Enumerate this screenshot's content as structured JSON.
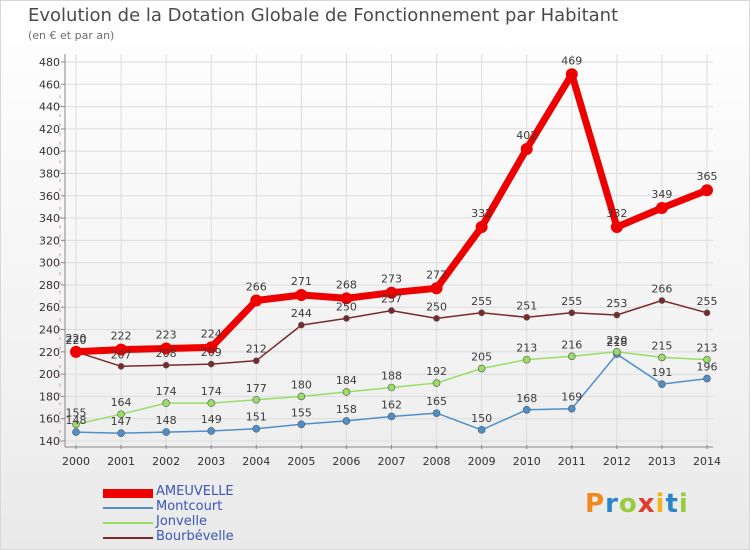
{
  "title": "Evolution de la Dotation Globale de Fonctionnement par Habitant",
  "subtitle": "(en € et par an)",
  "logo_text": "Proxiti",
  "chart_data": {
    "type": "line",
    "x": [
      "2000",
      "2001",
      "2002",
      "2003",
      "2004",
      "2005",
      "2006",
      "2007",
      "2008",
      "2009",
      "2010",
      "2011",
      "2012",
      "2013",
      "2014"
    ],
    "ylim": [
      140,
      480
    ],
    "yticks": [
      "140",
      "160",
      "180",
      "200",
      "220",
      "240",
      "260",
      "280",
      "300",
      "320",
      "340",
      "360",
      "380",
      "400",
      "420",
      "440",
      "460",
      "480"
    ],
    "grid": true,
    "legend": "bottom-left",
    "series": [
      {
        "name": "Montcourt",
        "color": "#4f8fc9",
        "values": [
          148,
          147,
          148,
          149,
          151,
          155,
          158,
          162,
          165,
          150,
          168,
          169,
          218,
          191,
          196
        ]
      },
      {
        "name": "Jonvelle",
        "color": "#99dd66",
        "values": [
          155,
          164,
          174,
          174,
          177,
          180,
          184,
          188,
          192,
          205,
          213,
          216,
          220,
          215,
          213
        ]
      },
      {
        "name": "Bourbévelle",
        "color": "#7a2a2a",
        "values": [
          220,
          207,
          208,
          209,
          212,
          244,
          250,
          257,
          250,
          255,
          251,
          255,
          253,
          266,
          255
        ]
      },
      {
        "name": "AMEUVELLE",
        "color": "#ee0000",
        "values": [
          220,
          222,
          223,
          224,
          266,
          271,
          268,
          273,
          277,
          332,
          402,
          469,
          332,
          349,
          365
        ]
      }
    ]
  }
}
